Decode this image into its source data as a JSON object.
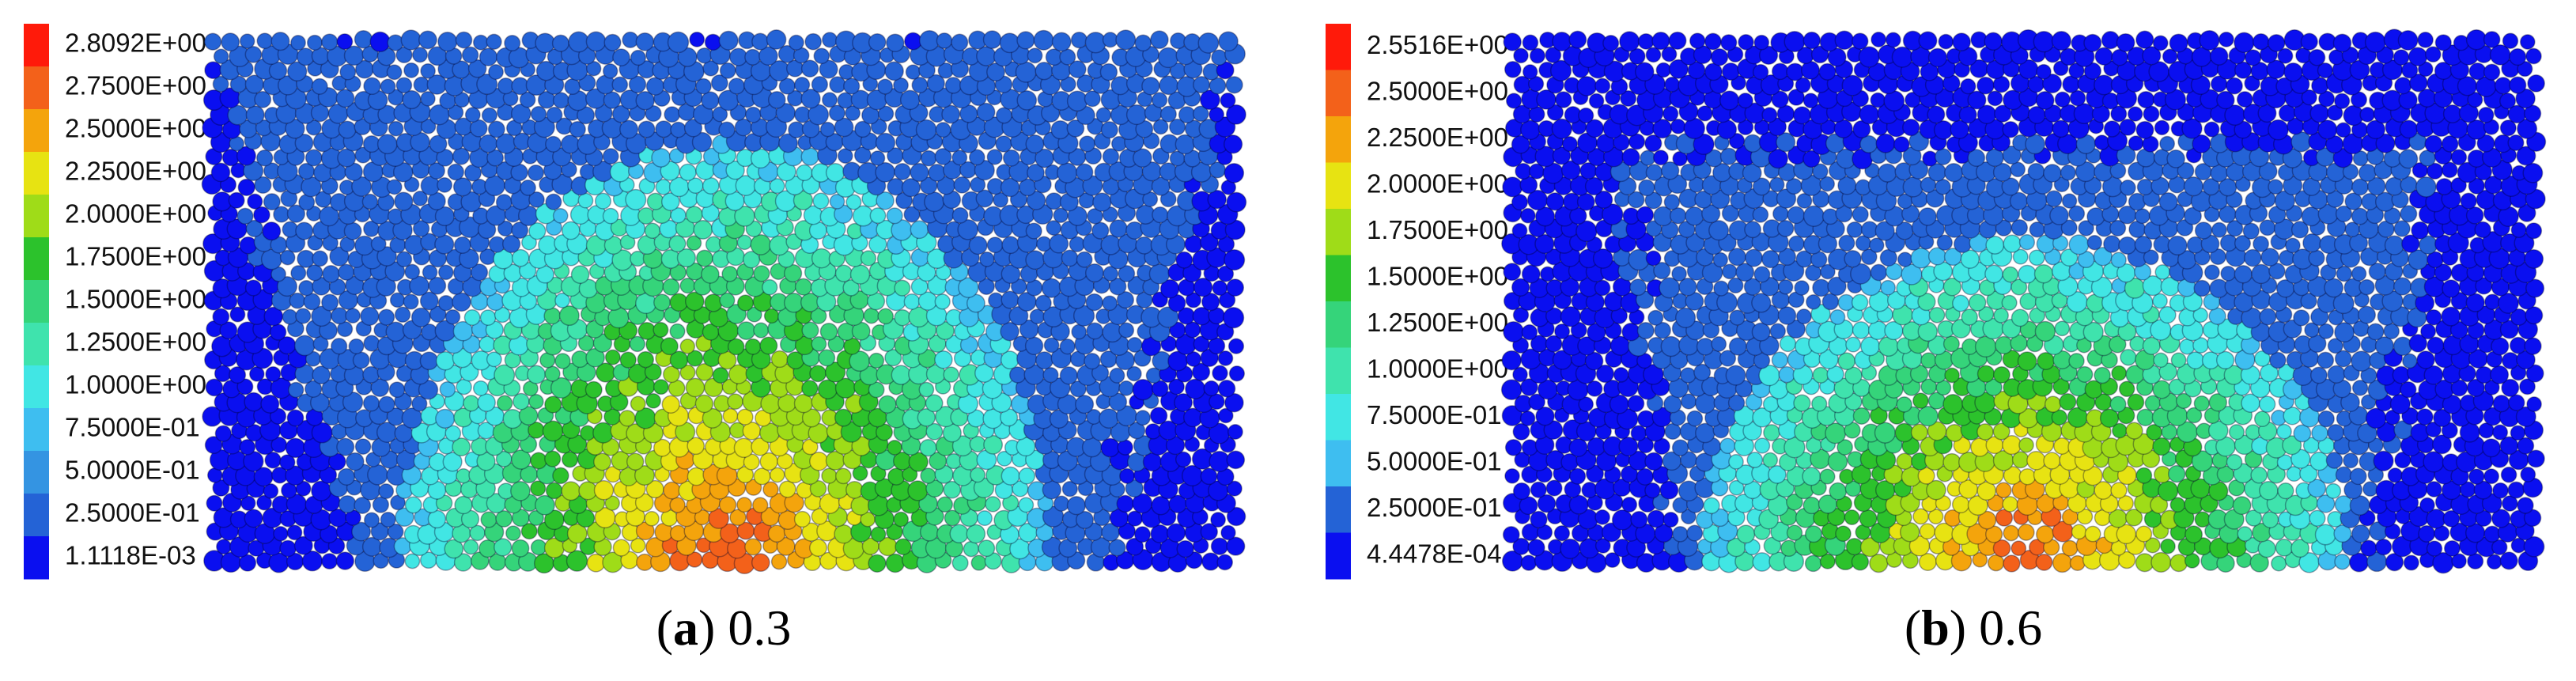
{
  "panels": [
    {
      "legend": [
        {
          "label": "2.8092E+00",
          "color": "#ff1a0a"
        },
        {
          "label": "2.7500E+00",
          "color": "#f3611a"
        },
        {
          "label": "2.5000E+00",
          "color": "#f4a40c"
        },
        {
          "label": "2.2500E+00",
          "color": "#e7e312"
        },
        {
          "label": "2.0000E+00",
          "color": "#9fdc18"
        },
        {
          "label": "1.7500E+00",
          "color": "#2cc22c"
        },
        {
          "label": "1.5000E+00",
          "color": "#35d47a"
        },
        {
          "label": "1.2500E+00",
          "color": "#3fe3ad"
        },
        {
          "label": "1.0000E+00",
          "color": "#41e6e4"
        },
        {
          "label": "7.5000E-01",
          "color": "#3ebef0"
        },
        {
          "label": "5.0000E-01",
          "color": "#3494e2"
        },
        {
          "label": "2.5000E-01",
          "color": "#2463d6"
        },
        {
          "label": "1.1118E-03",
          "color": "#0a0ff0"
        }
      ],
      "caption": {
        "prefix": "(",
        "letter": "a",
        "suffix": ") 0.3"
      }
    },
    {
      "legend": [
        {
          "label": "2.5516E+00",
          "color": "#ff1a0a"
        },
        {
          "label": "2.5000E+00",
          "color": "#f3611a"
        },
        {
          "label": "2.2500E+00",
          "color": "#f4a40c"
        },
        {
          "label": "2.0000E+00",
          "color": "#e7e312"
        },
        {
          "label": "1.7500E+00",
          "color": "#9fdc18"
        },
        {
          "label": "1.5000E+00",
          "color": "#2cc22c"
        },
        {
          "label": "1.2500E+00",
          "color": "#35d47a"
        },
        {
          "label": "1.0000E+00",
          "color": "#3fe3ad"
        },
        {
          "label": "7.5000E-01",
          "color": "#41e6e4"
        },
        {
          "label": "5.0000E-01",
          "color": "#3ebef0"
        },
        {
          "label": "2.5000E-01",
          "color": "#2463d6"
        },
        {
          "label": "4.4478E-04",
          "color": "#0a0ff0"
        }
      ],
      "caption": {
        "prefix": "(",
        "letter": "b",
        "suffix": ") 0.6"
      }
    }
  ]
}
